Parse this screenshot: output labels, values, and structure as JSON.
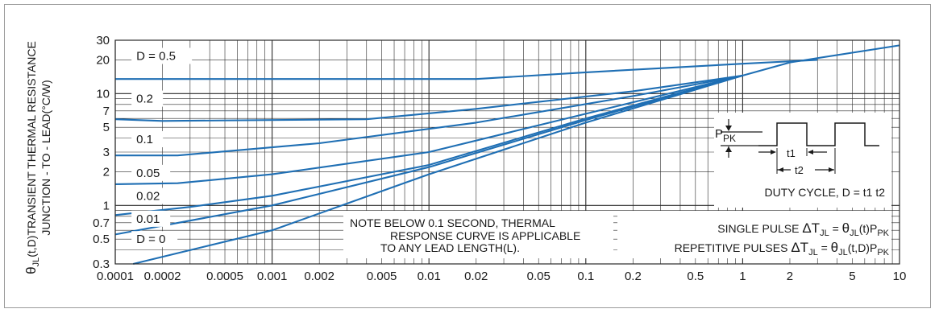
{
  "chart_data": {
    "type": "line",
    "x_scale": "log",
    "y_scale": "log",
    "xlim": [
      0.0001,
      10
    ],
    "ylim": [
      0.3,
      30
    ],
    "grid": true,
    "xlabel": "",
    "ylabel_line1": "θJL(t,D)TRANSIENT THERMAL RESISTANCE",
    "ylabel_line2": "JUNCTION - TO - LEAD(°C/W)",
    "ylabel_symbol": "θ",
    "ylabel_sub": "JL",
    "ylabel_rest1": "(t,D)TRANSIENT THERMAL RESISTANCE",
    "x_ticks": [
      {
        "v": 0.0001,
        "label": "0.0001"
      },
      {
        "v": 0.0002,
        "label": "0.0002"
      },
      {
        "v": 0.0005,
        "label": "0.0005"
      },
      {
        "v": 0.001,
        "label": "0.001"
      },
      {
        "v": 0.002,
        "label": "0.002"
      },
      {
        "v": 0.005,
        "label": "0.005"
      },
      {
        "v": 0.01,
        "label": "0.01"
      },
      {
        "v": 0.02,
        "label": "0.02"
      },
      {
        "v": 0.05,
        "label": "0.05"
      },
      {
        "v": 0.1,
        "label": "0.1"
      },
      {
        "v": 0.2,
        "label": "0.2"
      },
      {
        "v": 0.5,
        "label": "0.5"
      },
      {
        "v": 1,
        "label": "1"
      },
      {
        "v": 2,
        "label": "2"
      },
      {
        "v": 5,
        "label": "5"
      },
      {
        "v": 10,
        "label": "10"
      }
    ],
    "y_ticks": [
      {
        "v": 0.3,
        "label": "0.3"
      },
      {
        "v": 0.5,
        "label": "0.5"
      },
      {
        "v": 0.7,
        "label": "0.7"
      },
      {
        "v": 1,
        "label": "1"
      },
      {
        "v": 2,
        "label": "2"
      },
      {
        "v": 3,
        "label": "3"
      },
      {
        "v": 5,
        "label": "5"
      },
      {
        "v": 7,
        "label": "7"
      },
      {
        "v": 10,
        "label": "10"
      },
      {
        "v": 20,
        "label": "20"
      },
      {
        "v": 30,
        "label": "30"
      }
    ],
    "series": [
      {
        "name": "D = 0.5",
        "label_text": "D = 0.5",
        "label_at": [
          0.00013,
          20
        ],
        "points": [
          [
            0.0001,
            13.5
          ],
          [
            0.02,
            13.5
          ],
          [
            0.1,
            15.5
          ],
          [
            1,
            18.5
          ],
          [
            3,
            20
          ]
        ]
      },
      {
        "name": "0.2",
        "label_text": "0.2",
        "label_at": [
          0.00013,
          8.3
        ],
        "points": [
          [
            0.0001,
            5.9
          ],
          [
            0.0002,
            5.7
          ],
          [
            0.004,
            5.9
          ],
          [
            0.02,
            7.3
          ],
          [
            0.2,
            10.5
          ],
          [
            1,
            14.5
          ]
        ]
      },
      {
        "name": "0.1",
        "label_text": "0.1",
        "label_at": [
          0.00013,
          3.6
        ],
        "points": [
          [
            0.0001,
            2.8
          ],
          [
            0.00025,
            2.8
          ],
          [
            0.002,
            3.6
          ],
          [
            0.02,
            5.5
          ],
          [
            0.2,
            9.5
          ],
          [
            1,
            14.5
          ]
        ]
      },
      {
        "name": "0.05",
        "label_text": "0.05",
        "label_at": [
          0.00013,
          1.8
        ],
        "points": [
          [
            0.0001,
            1.55
          ],
          [
            0.00025,
            1.58
          ],
          [
            0.001,
            1.9
          ],
          [
            0.01,
            3.0
          ],
          [
            0.1,
            6.6
          ],
          [
            1,
            14.5
          ]
        ]
      },
      {
        "name": "0.02",
        "label_text": "0.02",
        "label_at": [
          0.00013,
          1.12
        ],
        "points": [
          [
            0.0001,
            0.82
          ],
          [
            0.0003,
            0.97
          ],
          [
            0.001,
            1.22
          ],
          [
            0.01,
            2.3
          ],
          [
            0.1,
            6.0
          ],
          [
            1,
            14.5
          ]
        ]
      },
      {
        "name": "0.01",
        "label_text": "0.01",
        "label_at": [
          0.00013,
          0.7
        ],
        "points": [
          [
            0.0001,
            0.55
          ],
          [
            0.001,
            1.0
          ],
          [
            0.01,
            2.2
          ],
          [
            0.1,
            5.8
          ],
          [
            1,
            14.5
          ]
        ]
      },
      {
        "name": "D = 0",
        "label_text": "D = 0",
        "label_at": [
          0.00013,
          0.46
        ],
        "points": [
          [
            0.00013,
            0.3
          ],
          [
            0.001,
            0.6
          ],
          [
            0.01,
            1.9
          ],
          [
            0.1,
            5.5
          ],
          [
            1,
            14.5
          ],
          [
            2,
            19
          ],
          [
            10,
            27
          ]
        ]
      }
    ],
    "note": [
      "NOTE BELOW 0.1 SECOND, THERMAL",
      "RESPONSE CURVE IS APPLICABLE",
      "TO ANY LEAD LENGTH(L)."
    ],
    "formula_single": {
      "prefix": "SINGLE PULSE",
      "delta": "ΔT",
      "delta_sub": "JL",
      "eq": "=",
      "theta": "θ",
      "theta_sub": "JL",
      "arg": "(t)P",
      "p_sub": "PK"
    },
    "formula_repetitive": {
      "prefix": "REPETITIVE PULSES",
      "delta": "ΔT",
      "delta_sub": "JL",
      "eq": "=",
      "theta": "θ",
      "theta_sub": "JL",
      "arg": "(t,D)P",
      "p_sub": "PK"
    },
    "inset": {
      "p_label": "P",
      "p_sub": "PK",
      "t1": "t1",
      "t2": "t2",
      "duty": "DUTY CYCLE, D = t1 t2"
    }
  },
  "colors": {
    "curve": "#1f6fb4",
    "grid": "#2a2a2a",
    "text": "#1a1a1a",
    "frame": "#9a9a9a"
  }
}
